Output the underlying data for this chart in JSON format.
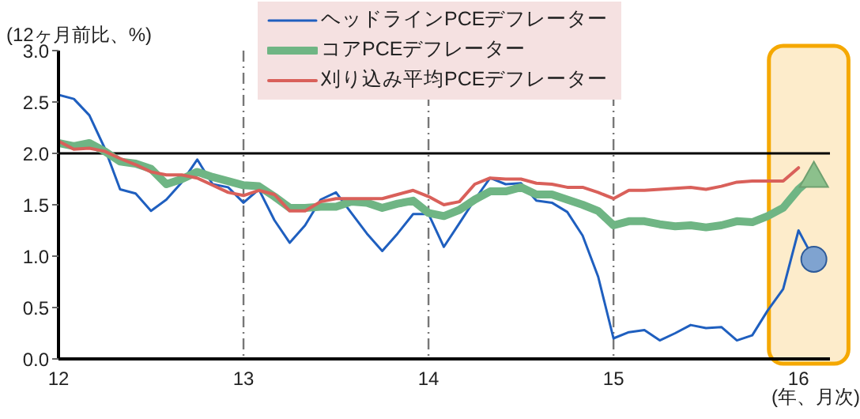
{
  "chart_data": {
    "type": "line",
    "ylabel": "(12ヶ月前比、%)",
    "xlabel": "(年、月次)",
    "x": [
      12,
      12.083,
      12.167,
      12.25,
      12.333,
      12.417,
      12.5,
      12.583,
      12.667,
      12.75,
      12.833,
      12.917,
      13,
      13.083,
      13.167,
      13.25,
      13.333,
      13.417,
      13.5,
      13.583,
      13.667,
      13.75,
      13.833,
      13.917,
      14,
      14.083,
      14.167,
      14.25,
      14.333,
      14.417,
      14.5,
      14.583,
      14.667,
      14.75,
      14.833,
      14.917,
      15,
      15.083,
      15.167,
      15.25,
      15.333,
      15.417,
      15.5,
      15.583,
      15.667,
      15.75,
      15.833,
      15.917,
      16,
      16.083
    ],
    "series": [
      {
        "name": "ヘッドラインPCEデフレーター",
        "color": "#1f5fbf",
        "values": [
          2.57,
          2.53,
          2.37,
          2.05,
          1.65,
          1.61,
          1.44,
          1.55,
          1.72,
          1.94,
          1.7,
          1.67,
          1.52,
          1.65,
          1.35,
          1.13,
          1.3,
          1.55,
          1.62,
          1.42,
          1.22,
          1.05,
          1.22,
          1.41,
          1.41,
          1.09,
          1.32,
          1.55,
          1.76,
          1.7,
          1.71,
          1.54,
          1.52,
          1.43,
          1.2,
          0.8,
          0.2,
          0.26,
          0.28,
          0.18,
          0.25,
          0.33,
          0.3,
          0.31,
          0.18,
          0.23,
          0.47,
          0.68,
          1.25,
          0.97
        ]
      },
      {
        "name": "コアPCEデフレーター",
        "color": "#6fb584",
        "values": [
          2.1,
          2.07,
          2.1,
          2.02,
          1.92,
          1.9,
          1.85,
          1.7,
          1.75,
          1.82,
          1.77,
          1.73,
          1.69,
          1.68,
          1.58,
          1.47,
          1.47,
          1.48,
          1.48,
          1.53,
          1.52,
          1.47,
          1.51,
          1.54,
          1.42,
          1.39,
          1.45,
          1.55,
          1.63,
          1.63,
          1.67,
          1.6,
          1.6,
          1.55,
          1.5,
          1.44,
          1.3,
          1.34,
          1.34,
          1.31,
          1.29,
          1.3,
          1.28,
          1.3,
          1.34,
          1.33,
          1.39,
          1.47,
          1.65,
          1.78
        ]
      },
      {
        "name": "刈り込み平均PCEデフレーター",
        "color": "#d9605a",
        "values": [
          2.12,
          2.04,
          2.05,
          2.02,
          1.95,
          1.89,
          1.82,
          1.79,
          1.79,
          1.76,
          1.69,
          1.62,
          1.59,
          1.64,
          1.6,
          1.44,
          1.44,
          1.53,
          1.56,
          1.56,
          1.56,
          1.56,
          1.6,
          1.64,
          1.58,
          1.5,
          1.53,
          1.7,
          1.76,
          1.75,
          1.75,
          1.71,
          1.7,
          1.67,
          1.67,
          1.62,
          1.56,
          1.64,
          1.64,
          1.65,
          1.66,
          1.67,
          1.65,
          1.68,
          1.72,
          1.73,
          1.73,
          1.73,
          1.86,
          null
        ]
      },
      {
        "type": "scatter",
        "marker": "circle",
        "color": "#7fa3d0",
        "x": [
          16.083
        ],
        "values": [
          0.97
        ]
      },
      {
        "type": "scatter",
        "marker": "triangle",
        "color": "#8cc08c",
        "x": [
          16.083
        ],
        "values": [
          1.78
        ]
      }
    ],
    "xlim": [
      12,
      16.17
    ],
    "xticks": [
      12,
      13,
      14,
      15,
      16
    ],
    "ylim": [
      0,
      3
    ],
    "yticks": [
      {
        "value": 0,
        "label": "0.0"
      },
      {
        "value": 0.5,
        "label": "0.5"
      },
      {
        "value": 1,
        "label": "1.0"
      },
      {
        "value": 1.5,
        "label": "1.5"
      },
      {
        "value": 2,
        "label": "2.0"
      },
      {
        "value": 2.5,
        "label": "2.5"
      },
      {
        "value": 3,
        "label": "3.0"
      }
    ],
    "ref_lines": [
      {
        "axis": "y",
        "value": 2,
        "color": "#000000",
        "line_style": "solid"
      }
    ],
    "bands": [
      {
        "axis": "x",
        "from": 15.84,
        "to": 16.27,
        "color": "#fdeccb"
      }
    ],
    "grid": "x",
    "legend": "top",
    "marker": "none",
    "line_style": "solid"
  }
}
